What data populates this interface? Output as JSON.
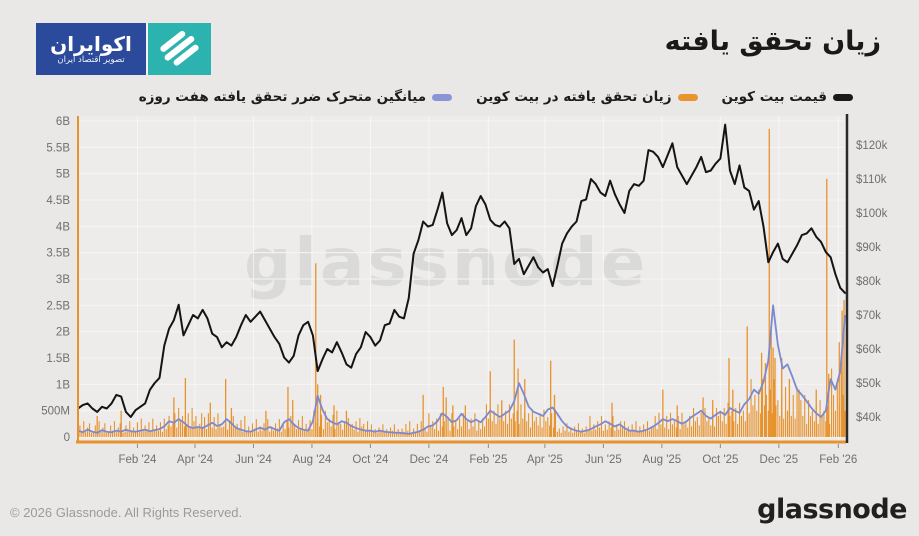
{
  "page": {
    "bg": "#e9e8e6",
    "plot_bg": "#edecea"
  },
  "header": {
    "title": "زیان تحقق یافته",
    "logo": {
      "line1": "اکوایران",
      "line2": "تصویر اقتصاد ایران",
      "blue": "#2b4a9c",
      "teal": "#2db3af"
    }
  },
  "legend": [
    {
      "id": "price",
      "label": "قیمت بیت کوین",
      "color": "#1a1a1a"
    },
    {
      "id": "loss",
      "label": "زیان تحقق یافته در بیت کوین",
      "color": "#e8952f"
    },
    {
      "id": "loss_ma",
      "label": "میانگین متحرک ضرر تحقق یافته هفت روزه",
      "color": "#8b95d6"
    }
  ],
  "watermark": "glassnode",
  "footer": {
    "copyright": "© 2026 Glassnode. All Rights Reserved.",
    "brand": "glassnode"
  },
  "chart_data": {
    "type": "mixed",
    "title": "زیان تحقق یافته",
    "x_axis": {
      "start": "Dec 2023",
      "end": "Feb 2026",
      "total_days": 800,
      "ticks": [
        {
          "label": "Feb '24",
          "day": 62
        },
        {
          "label": "Apr '24",
          "day": 122
        },
        {
          "label": "Jun '24",
          "day": 183
        },
        {
          "label": "Aug '24",
          "day": 244
        },
        {
          "label": "Oct '24",
          "day": 305
        },
        {
          "label": "Dec '24",
          "day": 366
        },
        {
          "label": "Feb '25",
          "day": 428
        },
        {
          "label": "Apr '25",
          "day": 487
        },
        {
          "label": "Jun '25",
          "day": 548
        },
        {
          "label": "Aug '25",
          "day": 609
        },
        {
          "label": "Oct '25",
          "day": 670
        },
        {
          "label": "Dec '25",
          "day": 731
        },
        {
          "label": "Feb '26",
          "day": 793
        }
      ]
    },
    "y_left": {
      "unit": "USD realized loss",
      "min_B": 0,
      "max_B": 6,
      "step_B": 0.5,
      "labels": [
        "0",
        "500M",
        "1B",
        "1.5B",
        "2B",
        "2.5B",
        "3B",
        "3.5B",
        "4B",
        "4.5B",
        "5B",
        "5.5B",
        "6B"
      ]
    },
    "y_right": {
      "unit": "BTC price USD",
      "min_k": 40,
      "max_k": 120,
      "step_k": 10,
      "labels": [
        "$40k",
        "$50k",
        "$60k",
        "$70k",
        "$80k",
        "$90k",
        "$100k",
        "$110k",
        "$120k"
      ]
    },
    "series": {
      "price": {
        "name": "قیمت بیت کوین",
        "color": "#141414",
        "axis": "right",
        "unit": "USD thousands",
        "step_days": 5,
        "values": [
          42.5,
          43.5,
          44,
          42.5,
          41.5,
          43,
          42.5,
          44,
          46.5,
          46,
          41.5,
          40,
          42,
          43,
          44,
          48,
          50,
          51.5,
          61,
          66,
          68.5,
          73,
          64,
          67,
          70,
          69,
          71.5,
          69,
          64.5,
          63.5,
          60.5,
          62,
          61,
          63.5,
          67,
          70,
          68,
          69.5,
          71,
          68.5,
          66,
          63.5,
          61.5,
          57.5,
          56,
          58,
          64,
          67,
          68,
          64,
          53.5,
          57,
          60,
          59,
          62,
          59,
          55.5,
          54.5,
          58.5,
          60.5,
          65,
          63.5,
          61,
          62.5,
          67,
          67.5,
          71.5,
          69.5,
          69,
          75,
          88,
          92,
          97.5,
          96,
          96.5,
          101,
          106,
          97,
          93.5,
          95,
          98.5,
          93.5,
          95.5,
          102,
          105,
          102.5,
          98,
          96.5,
          96,
          97.5,
          95.5,
          85,
          86.5,
          82,
          84.5,
          87,
          84,
          82.5,
          83.5,
          78.5,
          84.5,
          91,
          94,
          96,
          97.5,
          103.5,
          104,
          110,
          108.5,
          106,
          105,
          109.5,
          105.5,
          102.5,
          100,
          106.5,
          108.5,
          108,
          109.5,
          118.5,
          118,
          116.5,
          113.5,
          117,
          120.5,
          113.5,
          111,
          108.5,
          111,
          113.5,
          116.5,
          112,
          112.5,
          114.5,
          116,
          126,
          112.5,
          108.5,
          114,
          107.5,
          106.5,
          101,
          103.5,
          96,
          85.5,
          88.5,
          91,
          86.5,
          85.5,
          88,
          90.5,
          93.5,
          94,
          95.5,
          93,
          91.5,
          88.5,
          87,
          82,
          78,
          76.5
        ]
      },
      "loss_ma7": {
        "name": "میانگین متحرک ضرر تحقق یافته هفت روزه",
        "color": "#7d89cf",
        "axis": "left",
        "unit": "billions USD",
        "step_days": 5,
        "values": [
          0.12,
          0.09,
          0.14,
          0.1,
          0.08,
          0.13,
          0.1,
          0.09,
          0.12,
          0.1,
          0.14,
          0.11,
          0.1,
          0.12,
          0.14,
          0.11,
          0.13,
          0.15,
          0.2,
          0.3,
          0.27,
          0.34,
          0.28,
          0.2,
          0.17,
          0.19,
          0.17,
          0.22,
          0.27,
          0.21,
          0.24,
          0.34,
          0.26,
          0.17,
          0.14,
          0.11,
          0.1,
          0.14,
          0.18,
          0.14,
          0.19,
          0.15,
          0.12,
          0.28,
          0.34,
          0.24,
          0.17,
          0.14,
          0.12,
          0.3,
          0.78,
          0.52,
          0.34,
          0.28,
          0.24,
          0.3,
          0.27,
          0.21,
          0.17,
          0.14,
          0.12,
          0.12,
          0.1,
          0.12,
          0.1,
          0.09,
          0.08,
          0.08,
          0.07,
          0.06,
          0.08,
          0.1,
          0.14,
          0.2,
          0.22,
          0.3,
          0.45,
          0.38,
          0.28,
          0.32,
          0.44,
          0.34,
          0.28,
          0.33,
          0.28,
          0.38,
          0.5,
          0.44,
          0.38,
          0.44,
          0.5,
          0.68,
          1.02,
          0.82,
          0.58,
          0.48,
          0.44,
          0.4,
          0.52,
          0.56,
          0.44,
          0.3,
          0.2,
          0.15,
          0.12,
          0.1,
          0.12,
          0.15,
          0.2,
          0.24,
          0.3,
          0.25,
          0.2,
          0.24,
          0.17,
          0.12,
          0.12,
          0.1,
          0.12,
          0.15,
          0.2,
          0.26,
          0.34,
          0.3,
          0.34,
          0.3,
          0.25,
          0.3,
          0.38,
          0.44,
          0.5,
          0.4,
          0.35,
          0.42,
          0.48,
          0.42,
          0.55,
          0.5,
          0.46,
          0.62,
          0.72,
          0.9,
          0.82,
          1.05,
          1.45,
          2.5,
          1.75,
          1.3,
          1.38,
          1.15,
          0.9,
          0.8,
          0.68,
          0.55,
          0.45,
          0.38,
          0.5,
          1.1,
          0.9,
          1.25,
          2.3
        ]
      },
      "loss_bars": {
        "name": "زیان تحقق یافته در بیت کوین",
        "color": "#e8922c",
        "axis": "left",
        "unit": "billions USD",
        "bar_step_days": 2,
        "segments": [
          {
            "from": 0,
            "to": 60,
            "pattern": [
              0.09,
              0.22,
              0.12,
              0.3,
              0.1,
              0.18,
              0.26,
              0.08
            ]
          },
          {
            "from": 60,
            "to": 95,
            "pattern": [
              0.12,
              0.28,
              0.1,
              0.35,
              0.15,
              0.22
            ]
          },
          {
            "from": 95,
            "to": 130,
            "pattern": [
              0.25,
              0.45,
              0.18,
              0.55,
              0.3,
              0.4,
              0.2
            ]
          },
          {
            "from": 130,
            "to": 152,
            "pattern": [
              0.18,
              0.38,
              0.15,
              0.45,
              0.25
            ]
          },
          {
            "from": 152,
            "to": 176,
            "pattern": [
              0.14,
              0.32,
              0.1,
              0.4,
              0.2,
              0.25
            ]
          },
          {
            "from": 176,
            "to": 214,
            "pattern": [
              0.12,
              0.26,
              0.16,
              0.34,
              0.1,
              0.2
            ]
          },
          {
            "from": 214,
            "to": 244,
            "pattern": [
              0.15,
              0.32,
              0.18,
              0.4,
              0.12,
              0.25
            ]
          },
          {
            "from": 244,
            "to": 274,
            "pattern": [
              0.2,
              0.42,
              0.15,
              0.5,
              0.28,
              0.35
            ]
          },
          {
            "from": 274,
            "to": 304,
            "pattern": [
              0.14,
              0.3,
              0.1,
              0.36,
              0.2,
              0.25
            ]
          },
          {
            "from": 304,
            "to": 338,
            "pattern": [
              0.08,
              0.18,
              0.12,
              0.24,
              0.1,
              0.15
            ]
          },
          {
            "from": 338,
            "to": 366,
            "pattern": [
              0.08,
              0.16,
              0.1,
              0.25,
              0.12,
              0.3
            ]
          },
          {
            "from": 366,
            "to": 398,
            "pattern": [
              0.15,
              0.35,
              0.12,
              0.45,
              0.2,
              0.3
            ]
          },
          {
            "from": 398,
            "to": 426,
            "pattern": [
              0.15,
              0.35,
              0.2,
              0.45,
              0.12,
              0.3
            ]
          },
          {
            "from": 426,
            "to": 470,
            "pattern": [
              0.3,
              0.5,
              0.25,
              0.62,
              0.35,
              0.45
            ]
          },
          {
            "from": 470,
            "to": 500,
            "pattern": [
              0.22,
              0.45,
              0.18,
              0.52,
              0.3,
              0.38
            ]
          },
          {
            "from": 500,
            "to": 534,
            "pattern": [
              0.08,
              0.2,
              0.12,
              0.26,
              0.1,
              0.16
            ]
          },
          {
            "from": 534,
            "to": 570,
            "pattern": [
              0.14,
              0.3,
              0.18,
              0.4,
              0.12,
              0.24
            ]
          },
          {
            "from": 570,
            "to": 600,
            "pattern": [
              0.1,
              0.24,
              0.14,
              0.3,
              0.12,
              0.2
            ]
          },
          {
            "from": 600,
            "to": 640,
            "pattern": [
              0.18,
              0.4,
              0.15,
              0.46,
              0.24,
              0.3
            ]
          },
          {
            "from": 640,
            "to": 668,
            "pattern": [
              0.22,
              0.46,
              0.2,
              0.55,
              0.3,
              0.38
            ]
          },
          {
            "from": 668,
            "to": 700,
            "pattern": [
              0.3,
              0.55,
              0.25,
              0.65,
              0.4,
              0.5
            ]
          },
          {
            "from": 700,
            "to": 730,
            "pattern": [
              0.5,
              0.9,
              0.45,
              1.1,
              0.6,
              0.8
            ]
          },
          {
            "from": 730,
            "to": 760,
            "pattern": [
              0.4,
              0.8,
              0.35,
              0.95,
              0.5,
              0.7
            ]
          },
          {
            "from": 760,
            "to": 786,
            "pattern": [
              0.3,
              0.6,
              0.25,
              0.7,
              0.4,
              0.5
            ]
          },
          {
            "from": 786,
            "to": 801,
            "pattern": [
              0.5,
              1.0,
              0.6,
              1.3,
              0.8
            ]
          }
        ],
        "spikes": [
          [
            20,
            0.4
          ],
          [
            45,
            0.5
          ],
          [
            100,
            0.75
          ],
          [
            112,
            1.12
          ],
          [
            138,
            0.65
          ],
          [
            154,
            1.1
          ],
          [
            160,
            0.55
          ],
          [
            196,
            0.5
          ],
          [
            219,
            0.95
          ],
          [
            224,
            0.7
          ],
          [
            248,
            3.3
          ],
          [
            250,
            1.0
          ],
          [
            253,
            0.8
          ],
          [
            267,
            0.6
          ],
          [
            280,
            0.5
          ],
          [
            360,
            0.8
          ],
          [
            381,
            0.95
          ],
          [
            384,
            0.75
          ],
          [
            391,
            0.6
          ],
          [
            404,
            0.6
          ],
          [
            430,
            1.25
          ],
          [
            442,
            0.7
          ],
          [
            455,
            1.85
          ],
          [
            459,
            1.3
          ],
          [
            466,
            1.1
          ],
          [
            493,
            1.45
          ],
          [
            497,
            0.8
          ],
          [
            557,
            0.65
          ],
          [
            610,
            0.9
          ],
          [
            625,
            0.6
          ],
          [
            652,
            0.75
          ],
          [
            662,
            0.7
          ],
          [
            679,
            1.5
          ],
          [
            683,
            0.9
          ],
          [
            698,
            2.1
          ],
          [
            713,
            1.6
          ],
          [
            717,
            1.4
          ],
          [
            721,
            5.85
          ],
          [
            723,
            2.0
          ],
          [
            725,
            1.7
          ],
          [
            727,
            1.5
          ],
          [
            734,
            1.5
          ],
          [
            742,
            1.1
          ],
          [
            752,
            0.9
          ],
          [
            770,
            0.9
          ],
          [
            781,
            4.9
          ],
          [
            783,
            1.2
          ],
          [
            794,
            1.8
          ],
          [
            797,
            2.4
          ],
          [
            799,
            2.6
          ]
        ]
      }
    },
    "layout_hints": {
      "grid": true,
      "left_axis_color": "#e8922c",
      "bottom_axis_color": "#e8922c",
      "right_axis_color": "#2a2a2a"
    }
  }
}
